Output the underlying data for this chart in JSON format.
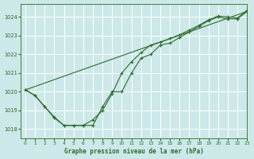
{
  "title": "Graphe pression niveau de la mer (hPa)",
  "bg_color": "#cde8e8",
  "grid_color": "#ffffff",
  "line_color": "#2d6b2d",
  "xlim": [
    -0.5,
    23
  ],
  "ylim": [
    1017.5,
    1024.7
  ],
  "yticks": [
    1018,
    1019,
    1020,
    1021,
    1022,
    1023,
    1024
  ],
  "xticks": [
    0,
    1,
    2,
    3,
    4,
    5,
    6,
    7,
    8,
    9,
    10,
    11,
    12,
    13,
    14,
    15,
    16,
    17,
    18,
    19,
    20,
    21,
    22,
    23
  ],
  "series1_x": [
    0,
    1,
    2,
    3,
    4,
    5,
    6,
    7,
    8,
    9,
    10,
    11,
    12,
    13,
    14,
    15,
    16,
    17,
    18,
    19,
    20,
    21,
    22,
    23
  ],
  "series1_y": [
    1020.1,
    1019.8,
    1019.2,
    1018.6,
    1018.2,
    1018.2,
    1018.2,
    1018.2,
    1019.2,
    1020.0,
    1020.0,
    1021.0,
    1021.8,
    1022.0,
    1022.5,
    1022.6,
    1022.9,
    1023.2,
    1023.5,
    1023.8,
    1024.0,
    1023.9,
    1023.9,
    1024.3
  ],
  "series2_x": [
    0,
    1,
    2,
    3,
    4,
    5,
    6,
    7,
    8,
    9,
    10,
    11,
    12,
    13,
    14,
    15,
    16,
    17,
    18,
    19,
    20,
    21,
    22,
    23
  ],
  "series2_y": [
    1020.1,
    1019.8,
    1019.2,
    1018.65,
    1018.2,
    1018.2,
    1018.2,
    1018.5,
    1019.0,
    1019.9,
    1021.0,
    1021.6,
    1022.1,
    1022.5,
    1022.65,
    1022.85,
    1023.05,
    1023.3,
    1023.55,
    1023.85,
    1024.05,
    1024.0,
    1023.95,
    1024.35
  ],
  "series3_x": [
    0,
    23
  ],
  "series3_y": [
    1020.1,
    1024.3
  ],
  "figsize": [
    3.2,
    2.0
  ],
  "dpi": 100
}
